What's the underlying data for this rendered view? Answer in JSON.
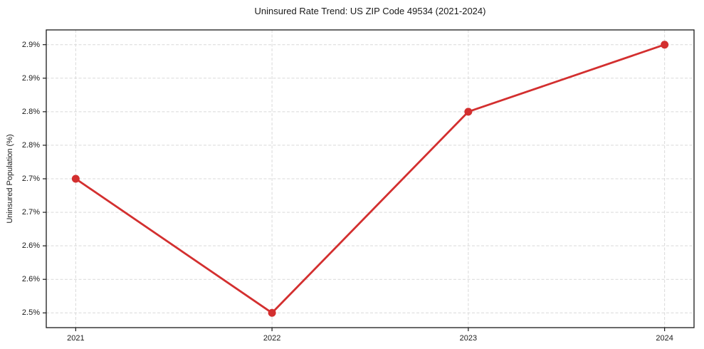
{
  "chart_data": {
    "type": "line",
    "title": "Uninsured Rate Trend: US ZIP Code 49534 (2021-2024)",
    "ylabel": "Uninsured Population (%)",
    "xlabel": "",
    "x": [
      2021,
      2022,
      2023,
      2024
    ],
    "values": [
      2.7,
      2.5,
      2.8,
      2.9
    ],
    "unit": "%",
    "xlim": [
      2020.85,
      2024.15
    ],
    "ylim": [
      2.478,
      2.922
    ],
    "x_ticks": [
      {
        "value": 2021,
        "label": "2021"
      },
      {
        "value": 2022,
        "label": "2022"
      },
      {
        "value": 2023,
        "label": "2023"
      },
      {
        "value": 2024,
        "label": "2024"
      }
    ],
    "y_ticks": [
      {
        "value": 2.5,
        "label": "2.5%"
      },
      {
        "value": 2.55,
        "label": "2.6%"
      },
      {
        "value": 2.6,
        "label": "2.6%"
      },
      {
        "value": 2.65,
        "label": "2.7%"
      },
      {
        "value": 2.7,
        "label": "2.7%"
      },
      {
        "value": 2.75,
        "label": "2.8%"
      },
      {
        "value": 2.8,
        "label": "2.8%"
      },
      {
        "value": 2.85,
        "label": "2.9%"
      },
      {
        "value": 2.9,
        "label": "2.9%"
      }
    ],
    "grid": true,
    "legend_position": "none",
    "line_color": "#d32f2f",
    "marker_color": "#d32f2f",
    "grid_color": "#d9d9d9",
    "spine_color": "#1a1a1a"
  }
}
